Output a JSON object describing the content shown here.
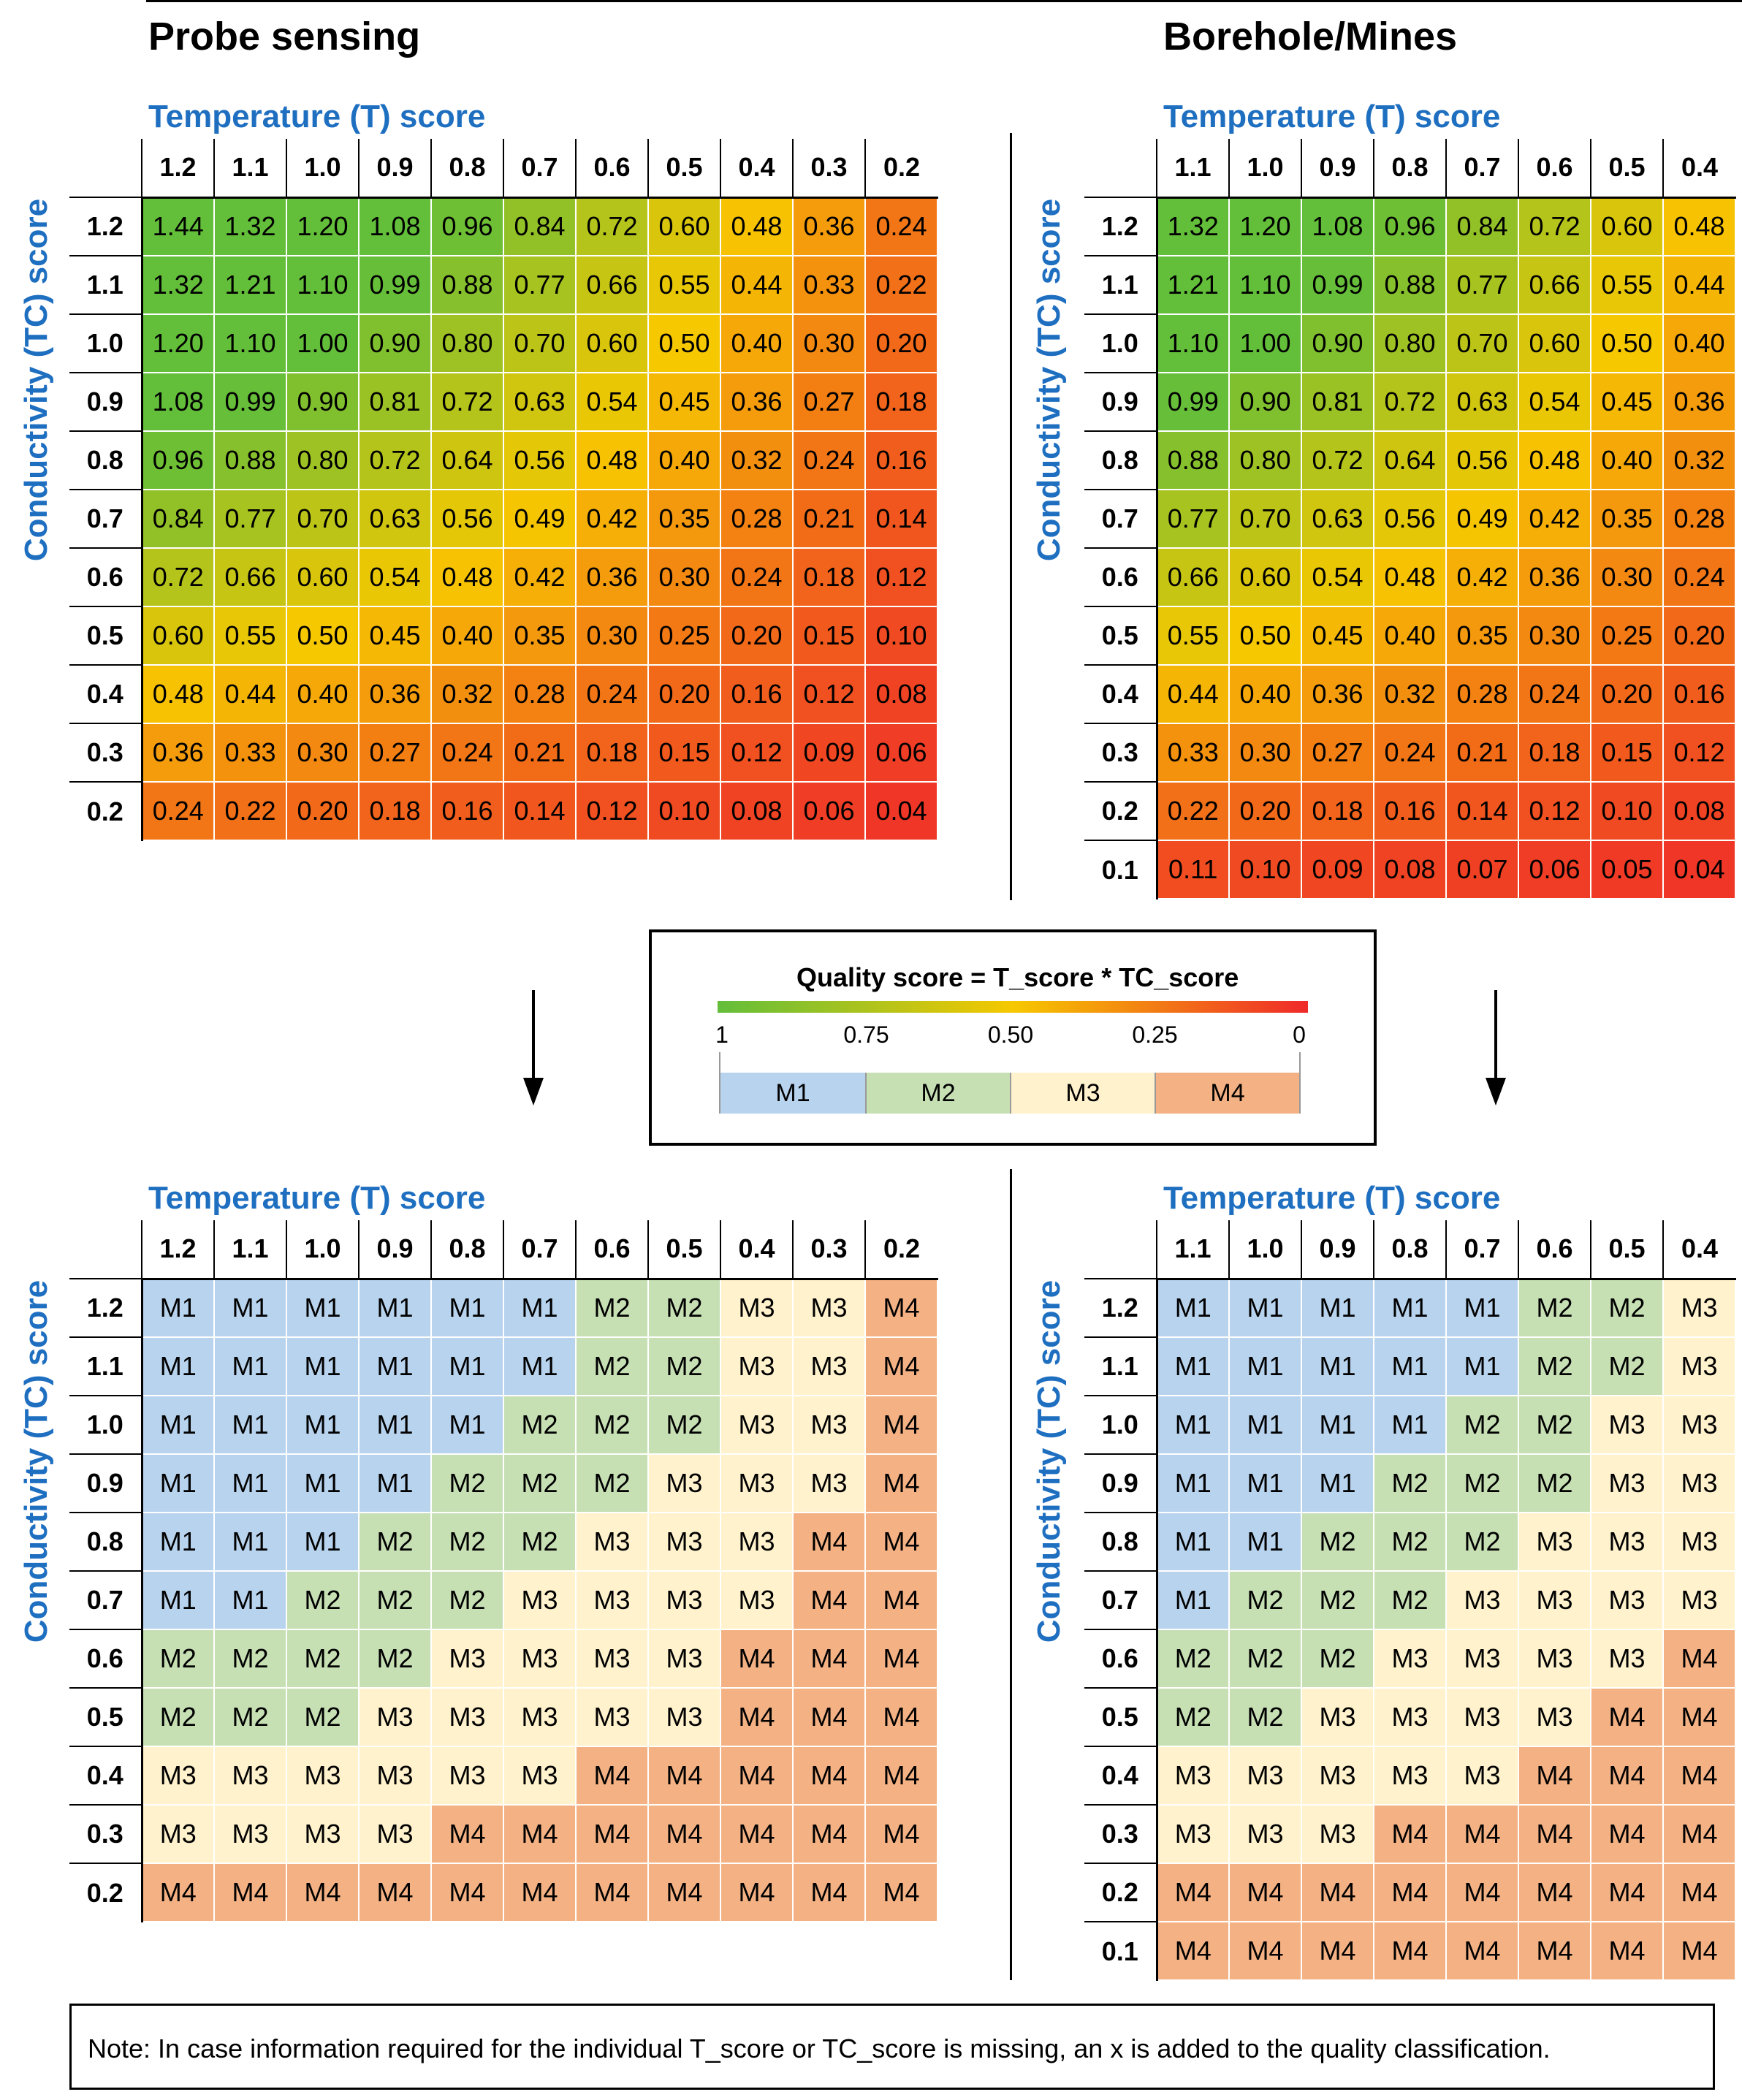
{
  "panels": {
    "probe": {
      "title": "Probe sensing",
      "t_axis_label": "Temperature (T) score",
      "tc_axis_label": "Conductivity (TC) score",
      "t_scores": [
        "1.2",
        "1.1",
        "1.0",
        "0.9",
        "0.8",
        "0.7",
        "0.6",
        "0.5",
        "0.4",
        "0.3",
        "0.2"
      ],
      "tc_scores": [
        "1.2",
        "1.1",
        "1.0",
        "0.9",
        "0.8",
        "0.7",
        "0.6",
        "0.5",
        "0.4",
        "0.3",
        "0.2"
      ],
      "quality": [
        [
          "1.44",
          "1.32",
          "1.20",
          "1.08",
          "0.96",
          "0.84",
          "0.72",
          "0.60",
          "0.48",
          "0.36",
          "0.24"
        ],
        [
          "1.32",
          "1.21",
          "1.10",
          "0.99",
          "0.88",
          "0.77",
          "0.66",
          "0.55",
          "0.44",
          "0.33",
          "0.22"
        ],
        [
          "1.20",
          "1.10",
          "1.00",
          "0.90",
          "0.80",
          "0.70",
          "0.60",
          "0.50",
          "0.40",
          "0.30",
          "0.20"
        ],
        [
          "1.08",
          "0.99",
          "0.90",
          "0.81",
          "0.72",
          "0.63",
          "0.54",
          "0.45",
          "0.36",
          "0.27",
          "0.18"
        ],
        [
          "0.96",
          "0.88",
          "0.80",
          "0.72",
          "0.64",
          "0.56",
          "0.48",
          "0.40",
          "0.32",
          "0.24",
          "0.16"
        ],
        [
          "0.84",
          "0.77",
          "0.70",
          "0.63",
          "0.56",
          "0.49",
          "0.42",
          "0.35",
          "0.28",
          "0.21",
          "0.14"
        ],
        [
          "0.72",
          "0.66",
          "0.60",
          "0.54",
          "0.48",
          "0.42",
          "0.36",
          "0.30",
          "0.24",
          "0.18",
          "0.12"
        ],
        [
          "0.60",
          "0.55",
          "0.50",
          "0.45",
          "0.40",
          "0.35",
          "0.30",
          "0.25",
          "0.20",
          "0.15",
          "0.10"
        ],
        [
          "0.48",
          "0.44",
          "0.40",
          "0.36",
          "0.32",
          "0.28",
          "0.24",
          "0.20",
          "0.16",
          "0.12",
          "0.08"
        ],
        [
          "0.36",
          "0.33",
          "0.30",
          "0.27",
          "0.24",
          "0.21",
          "0.18",
          "0.15",
          "0.12",
          "0.09",
          "0.06"
        ],
        [
          "0.24",
          "0.22",
          "0.20",
          "0.18",
          "0.16",
          "0.14",
          "0.12",
          "0.10",
          "0.08",
          "0.06",
          "0.04"
        ]
      ],
      "classes": [
        [
          "M1",
          "M1",
          "M1",
          "M1",
          "M1",
          "M1",
          "M2",
          "M2",
          "M3",
          "M3",
          "M4"
        ],
        [
          "M1",
          "M1",
          "M1",
          "M1",
          "M1",
          "M1",
          "M2",
          "M2",
          "M3",
          "M3",
          "M4"
        ],
        [
          "M1",
          "M1",
          "M1",
          "M1",
          "M1",
          "M2",
          "M2",
          "M2",
          "M3",
          "M3",
          "M4"
        ],
        [
          "M1",
          "M1",
          "M1",
          "M1",
          "M2",
          "M2",
          "M2",
          "M3",
          "M3",
          "M3",
          "M4"
        ],
        [
          "M1",
          "M1",
          "M1",
          "M2",
          "M2",
          "M2",
          "M3",
          "M3",
          "M3",
          "M4",
          "M4"
        ],
        [
          "M1",
          "M1",
          "M2",
          "M2",
          "M2",
          "M3",
          "M3",
          "M3",
          "M3",
          "M4",
          "M4"
        ],
        [
          "M2",
          "M2",
          "M2",
          "M2",
          "M3",
          "M3",
          "M3",
          "M3",
          "M4",
          "M4",
          "M4"
        ],
        [
          "M2",
          "M2",
          "M2",
          "M3",
          "M3",
          "M3",
          "M3",
          "M3",
          "M4",
          "M4",
          "M4"
        ],
        [
          "M3",
          "M3",
          "M3",
          "M3",
          "M3",
          "M3",
          "M4",
          "M4",
          "M4",
          "M4",
          "M4"
        ],
        [
          "M3",
          "M3",
          "M3",
          "M3",
          "M4",
          "M4",
          "M4",
          "M4",
          "M4",
          "M4",
          "M4"
        ],
        [
          "M4",
          "M4",
          "M4",
          "M4",
          "M4",
          "M4",
          "M4",
          "M4",
          "M4",
          "M4",
          "M4"
        ]
      ]
    },
    "borehole": {
      "title": "Borehole/Mines",
      "t_axis_label": "Temperature (T) score",
      "tc_axis_label": "Conductivity (TC) score",
      "t_scores": [
        "1.1",
        "1.0",
        "0.9",
        "0.8",
        "0.7",
        "0.6",
        "0.5",
        "0.4"
      ],
      "tc_scores": [
        "1.2",
        "1.1",
        "1.0",
        "0.9",
        "0.8",
        "0.7",
        "0.6",
        "0.5",
        "0.4",
        "0.3",
        "0.2",
        "0.1"
      ],
      "quality": [
        [
          "1.32",
          "1.20",
          "1.08",
          "0.96",
          "0.84",
          "0.72",
          "0.60",
          "0.48"
        ],
        [
          "1.21",
          "1.10",
          "0.99",
          "0.88",
          "0.77",
          "0.66",
          "0.55",
          "0.44"
        ],
        [
          "1.10",
          "1.00",
          "0.90",
          "0.80",
          "0.70",
          "0.60",
          "0.50",
          "0.40"
        ],
        [
          "0.99",
          "0.90",
          "0.81",
          "0.72",
          "0.63",
          "0.54",
          "0.45",
          "0.36"
        ],
        [
          "0.88",
          "0.80",
          "0.72",
          "0.64",
          "0.56",
          "0.48",
          "0.40",
          "0.32"
        ],
        [
          "0.77",
          "0.70",
          "0.63",
          "0.56",
          "0.49",
          "0.42",
          "0.35",
          "0.28"
        ],
        [
          "0.66",
          "0.60",
          "0.54",
          "0.48",
          "0.42",
          "0.36",
          "0.30",
          "0.24"
        ],
        [
          "0.55",
          "0.50",
          "0.45",
          "0.40",
          "0.35",
          "0.30",
          "0.25",
          "0.20"
        ],
        [
          "0.44",
          "0.40",
          "0.36",
          "0.32",
          "0.28",
          "0.24",
          "0.20",
          "0.16"
        ],
        [
          "0.33",
          "0.30",
          "0.27",
          "0.24",
          "0.21",
          "0.18",
          "0.15",
          "0.12"
        ],
        [
          "0.22",
          "0.20",
          "0.18",
          "0.16",
          "0.14",
          "0.12",
          "0.10",
          "0.08"
        ],
        [
          "0.11",
          "0.10",
          "0.09",
          "0.08",
          "0.07",
          "0.06",
          "0.05",
          "0.04"
        ]
      ],
      "classes": [
        [
          "M1",
          "M1",
          "M1",
          "M1",
          "M1",
          "M2",
          "M2",
          "M3"
        ],
        [
          "M1",
          "M1",
          "M1",
          "M1",
          "M1",
          "M2",
          "M2",
          "M3"
        ],
        [
          "M1",
          "M1",
          "M1",
          "M1",
          "M2",
          "M2",
          "M3",
          "M3"
        ],
        [
          "M1",
          "M1",
          "M1",
          "M2",
          "M2",
          "M2",
          "M3",
          "M3"
        ],
        [
          "M1",
          "M1",
          "M2",
          "M2",
          "M2",
          "M3",
          "M3",
          "M3"
        ],
        [
          "M1",
          "M2",
          "M2",
          "M2",
          "M3",
          "M3",
          "M3",
          "M3"
        ],
        [
          "M2",
          "M2",
          "M2",
          "M3",
          "M3",
          "M3",
          "M3",
          "M4"
        ],
        [
          "M2",
          "M2",
          "M3",
          "M3",
          "M3",
          "M3",
          "M4",
          "M4"
        ],
        [
          "M3",
          "M3",
          "M3",
          "M3",
          "M3",
          "M4",
          "M4",
          "M4"
        ],
        [
          "M3",
          "M3",
          "M3",
          "M4",
          "M4",
          "M4",
          "M4",
          "M4"
        ],
        [
          "M4",
          "M4",
          "M4",
          "M4",
          "M4",
          "M4",
          "M4",
          "M4"
        ],
        [
          "M4",
          "M4",
          "M4",
          "M4",
          "M4",
          "M4",
          "M4",
          "M4"
        ]
      ]
    }
  },
  "legend": {
    "title": "Quality score = T_score * TC_score",
    "ticks": [
      "1",
      "0.75",
      "0.50",
      "0.25",
      "0"
    ],
    "classes": [
      "M1",
      "M2",
      "M3",
      "M4"
    ],
    "gradient_colors": [
      "#63be3a",
      "#f6c800",
      "#ef2a2a"
    ],
    "class_colors": {
      "M1": "#b8d3ee",
      "M2": "#c6e0b4",
      "M3": "#fff2cc",
      "M4": "#f4b183"
    }
  },
  "note": "Note: In case information required for the individual T_score or TC_score is missing, an x is added to the quality classification."
}
